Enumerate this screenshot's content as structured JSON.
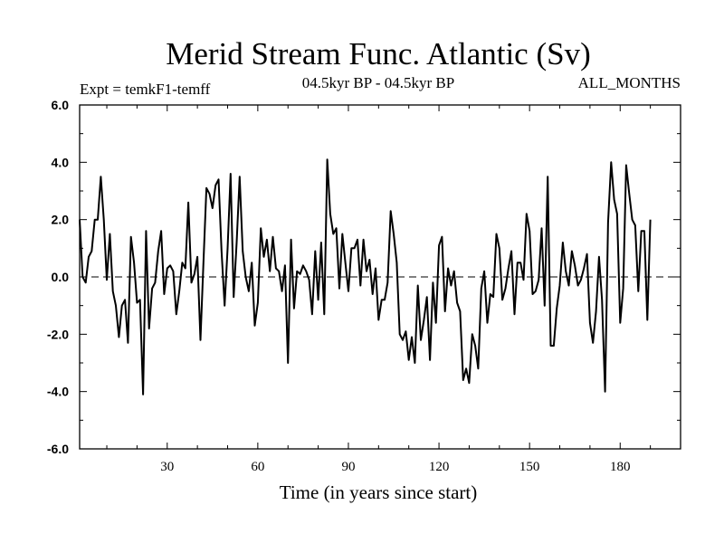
{
  "chart_data": {
    "type": "line",
    "title": "Merid Stream Func. Atlantic (Sv)",
    "subtitle_left": "Expt = temkF1-temff",
    "subtitle_center": "04.5kyr BP - 04.5kyr BP",
    "subtitle_right": "ALL_MONTHS",
    "xlabel": "Time (in years since start)",
    "ylabel": "",
    "xlim": [
      1,
      200
    ],
    "ylim": [
      -6,
      6
    ],
    "x_ticks": [
      30,
      60,
      90,
      120,
      150,
      180
    ],
    "x_tick_labels": [
      "30",
      "60",
      "90",
      "120",
      "150",
      "180"
    ],
    "y_ticks": [
      -6,
      -4,
      -2,
      0,
      2,
      4,
      6
    ],
    "y_tick_labels": [
      "-6.0",
      "-4.0",
      "-2.0",
      "0.0",
      "2.0",
      "4.0",
      "6.0"
    ],
    "reference_line": {
      "y": 0,
      "style": "dashed"
    },
    "series": [
      {
        "name": "temkF1-temff",
        "x_start": 1,
        "x_step": 1,
        "values": [
          2.0,
          0.0,
          -0.2,
          0.7,
          0.9,
          2.0,
          2.0,
          3.5,
          2.0,
          -0.1,
          1.5,
          -0.5,
          -1.0,
          -2.1,
          -1.0,
          -0.8,
          -2.3,
          1.4,
          0.5,
          -0.9,
          -0.8,
          -4.1,
          1.6,
          -1.8,
          -0.4,
          -0.2,
          0.9,
          1.6,
          -0.6,
          0.3,
          0.4,
          0.2,
          -1.3,
          -0.5,
          0.5,
          0.3,
          2.6,
          -0.2,
          0.1,
          0.7,
          -2.2,
          0.5,
          3.1,
          2.9,
          2.4,
          3.2,
          3.4,
          0.9,
          -1.0,
          1.0,
          3.6,
          -0.7,
          1.2,
          3.5,
          0.9,
          0.0,
          -0.5,
          0.5,
          -1.7,
          -0.9,
          1.7,
          0.7,
          1.3,
          0.2,
          1.4,
          0.3,
          0.2,
          -0.5,
          0.4,
          -3.0,
          1.3,
          -1.1,
          0.2,
          0.1,
          0.4,
          0.2,
          -0.1,
          -1.3,
          0.9,
          -0.8,
          1.2,
          -1.3,
          4.1,
          2.2,
          1.5,
          1.7,
          -0.4,
          1.5,
          0.5,
          -0.5,
          1.0,
          1.0,
          1.3,
          -0.3,
          1.3,
          0.2,
          0.6,
          -0.6,
          0.3,
          -1.5,
          -0.8,
          -0.8,
          -0.2,
          2.3,
          1.5,
          0.5,
          -2.0,
          -2.2,
          -1.9,
          -2.9,
          -2.1,
          -3.0,
          -0.3,
          -2.2,
          -1.5,
          -0.7,
          -2.9,
          -0.2,
          -1.6,
          1.1,
          1.4,
          -1.2,
          0.3,
          -0.3,
          0.2,
          -0.9,
          -1.2,
          -3.6,
          -3.2,
          -3.7,
          -2.0,
          -2.4,
          -3.2,
          -0.4,
          0.2,
          -1.6,
          -0.6,
          -0.7,
          1.5,
          1.0,
          -0.8,
          -0.4,
          0.3,
          0.9,
          -1.3,
          0.5,
          0.5,
          -0.1,
          2.2,
          1.6,
          -0.6,
          -0.5,
          -0.1,
          1.7,
          -1.0,
          3.5,
          -2.4,
          -2.4,
          -1.1,
          -0.3,
          1.2,
          0.2,
          -0.3,
          0.9,
          0.4,
          -0.3,
          -0.1,
          0.3,
          0.8,
          -1.6,
          -2.3,
          -1.2,
          0.7,
          -0.8,
          -4.0,
          1.9,
          4.0,
          2.7,
          2.2,
          -1.6,
          -0.4,
          3.9,
          2.9,
          2.0,
          1.8,
          -0.5,
          1.6,
          1.6,
          -1.5,
          2.0
        ]
      }
    ]
  }
}
